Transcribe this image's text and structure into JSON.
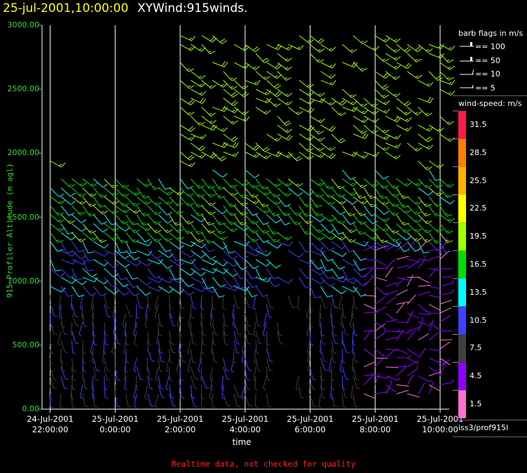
{
  "header": {
    "datetime": "25-jul-2001,10:00:00",
    "title": "XYWind:915winds."
  },
  "chart_data": {
    "type": "scatter",
    "marker": "wind-barb",
    "ylabel": "915 Profiler Altitude (m agl)",
    "xlabel": "time",
    "ylim": [
      0,
      3000
    ],
    "y_ticks": [
      "0.00",
      "500.00",
      "1000.00",
      "1500.00",
      "2000.00",
      "2500.00",
      "3000.00"
    ],
    "xlim_hours": [
      -2.25,
      10.15
    ],
    "x_ticks": [
      {
        "hour": -2,
        "line1": "24-Jul-2001",
        "line2": "22:00:00"
      },
      {
        "hour": 0,
        "line1": "25-Jul-2001",
        "line2": "0:00:00"
      },
      {
        "hour": 2,
        "line1": "25-Jul-2001",
        "line2": "2:00:00"
      },
      {
        "hour": 4,
        "line1": "25-Jul-2001",
        "line2": "4:00:00"
      },
      {
        "hour": 6,
        "line1": "25-Jul-2001",
        "line2": "6:00:00"
      },
      {
        "hour": 8,
        "line1": "25-Jul-2001",
        "line2": "8:00:00"
      },
      {
        "hour": 10,
        "line1": "25-Jul-2001",
        "line2": "10:00:00"
      }
    ],
    "grid": "vertical-at-ticks",
    "note": "Realtime data, not checked for quality",
    "scale": {
      "title": "wind-speed: m/s",
      "labels": [
        "31.5",
        "28.5",
        "25.5",
        "22.5",
        "19.5",
        "16.5",
        "13.5",
        "10.5",
        "7.5",
        "4.5",
        "1.5"
      ],
      "colors": [
        "#ff1a4a",
        "#ff8000",
        "#ffb000",
        "#ffff00",
        "#a0ff00",
        "#00e000",
        "#00ffff",
        "#4040ff",
        "#404040",
        "#9000ff",
        "#ff70d0"
      ]
    },
    "barb_legend": {
      "title": "barb flags in m/s",
      "items": [
        "== 100",
        "== 50",
        "== 10",
        "== 5"
      ]
    },
    "station": "iss3/prof915l"
  }
}
